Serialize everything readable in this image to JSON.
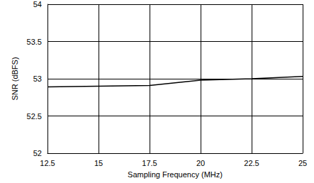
{
  "chart_data": {
    "type": "line",
    "x_label": "Sampling Frequency (MHz)",
    "y_label": "SNR (dBFS)",
    "x": [
      12.5,
      15,
      17.5,
      20,
      22.5,
      25
    ],
    "values": [
      52.89,
      52.9,
      52.91,
      52.98,
      53.0,
      53.03
    ],
    "color": "#000000",
    "xlim": [
      12.5,
      25
    ],
    "xticks": [
      12.5,
      15,
      17.5,
      20,
      22.5,
      25
    ],
    "ylim": [
      52,
      54
    ],
    "yticks": [
      52,
      52.5,
      53,
      53.5,
      54
    ],
    "grid": true
  }
}
